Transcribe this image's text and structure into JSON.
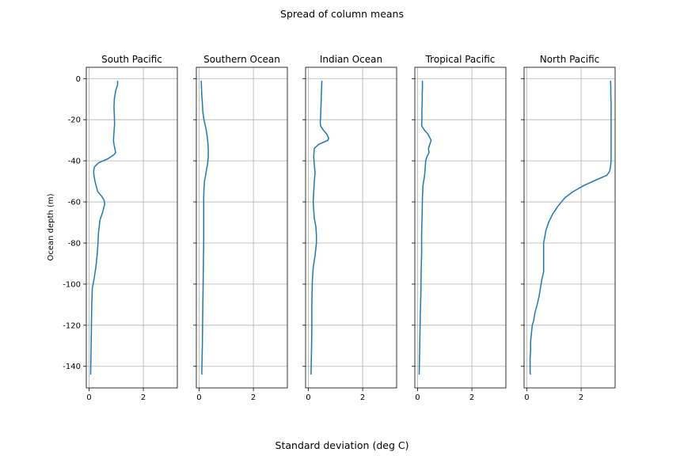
{
  "figure": {
    "suptitle": "Spread of column means",
    "supxlabel": "Standard deviation (deg C)"
  },
  "chart_data": {
    "type": "line",
    "title": "Spread of column means",
    "xlabel": "Standard deviation (deg C)",
    "ylabel": "Ocean depth (m)",
    "xlim": [
      -0.1,
      3.25
    ],
    "ylim": [
      -150.5,
      5.5
    ],
    "x_ticks": [
      0,
      2
    ],
    "y_ticks": [
      0,
      -20,
      -40,
      -60,
      -80,
      -100,
      -120,
      -140
    ],
    "grid": true,
    "sharey": true,
    "line_color": "#1f77b4",
    "panels": [
      {
        "title": "South Pacific",
        "x": [
          1.05,
          1.05,
          0.98,
          0.93,
          0.92,
          0.93,
          0.94,
          0.92,
          0.9,
          0.92,
          0.95,
          0.98,
          0.92,
          0.7,
          0.35,
          0.2,
          0.17,
          0.18,
          0.22,
          0.28,
          0.32,
          0.45,
          0.55,
          0.58,
          0.5,
          0.4,
          0.35,
          0.33,
          0.3,
          0.25,
          0.18,
          0.12,
          0.1,
          0.09,
          0.08,
          0.07,
          0.06
        ],
        "y": [
          -1,
          -3,
          -6,
          -10,
          -14,
          -18,
          -22,
          -26,
          -30,
          -32,
          -34,
          -36,
          -37,
          -39,
          -41,
          -43,
          -45,
          -47,
          -50,
          -53,
          -55,
          -57,
          -59,
          -61,
          -65,
          -69,
          -75,
          -80,
          -86,
          -92,
          -98,
          -102,
          -110,
          -120,
          -128,
          -136,
          -144
        ]
      },
      {
        "title": "Southern Ocean",
        "x": [
          0.08,
          0.09,
          0.1,
          0.12,
          0.14,
          0.18,
          0.25,
          0.3,
          0.33,
          0.34,
          0.34,
          0.32,
          0.28,
          0.24,
          0.2,
          0.18,
          0.17,
          0.17,
          0.17,
          0.17,
          0.16,
          0.15,
          0.14,
          0.13,
          0.12,
          0.11,
          0.1
        ],
        "y": [
          -1,
          -4,
          -8,
          -12,
          -16,
          -20,
          -24,
          -28,
          -32,
          -35,
          -38,
          -41,
          -44,
          -47,
          -50,
          -54,
          -58,
          -62,
          -70,
          -80,
          -90,
          -100,
          -110,
          -120,
          -130,
          -137,
          -144
        ]
      },
      {
        "title": "Indian Ocean",
        "x": [
          0.5,
          0.49,
          0.48,
          0.47,
          0.46,
          0.45,
          0.44,
          0.45,
          0.55,
          0.68,
          0.75,
          0.72,
          0.55,
          0.38,
          0.22,
          0.2,
          0.22,
          0.25,
          0.22,
          0.2,
          0.18,
          0.2,
          0.22,
          0.28,
          0.3,
          0.3,
          0.25,
          0.18,
          0.15,
          0.14,
          0.13,
          0.13,
          0.12,
          0.11,
          0.1
        ],
        "y": [
          -1,
          -4,
          -8,
          -12,
          -16,
          -19,
          -21,
          -23,
          -25,
          -27,
          -29,
          -30,
          -31,
          -32,
          -34,
          -38,
          -42,
          -46,
          -50,
          -55,
          -60,
          -64,
          -68,
          -72,
          -76,
          -80,
          -86,
          -92,
          -98,
          -104,
          -110,
          -120,
          -130,
          -138,
          -144
        ]
      },
      {
        "title": "Tropical Pacific",
        "x": [
          0.18,
          0.18,
          0.17,
          0.17,
          0.16,
          0.16,
          0.15,
          0.25,
          0.38,
          0.5,
          0.45,
          0.4,
          0.42,
          0.35,
          0.3,
          0.28,
          0.25,
          0.2,
          0.18,
          0.17,
          0.15,
          0.15,
          0.13,
          0.12,
          0.1,
          0.08,
          0.06
        ],
        "y": [
          -1,
          -4,
          -8,
          -12,
          -16,
          -20,
          -23,
          -25,
          -27,
          -30,
          -32,
          -34,
          -36,
          -38,
          -40,
          -44,
          -48,
          -52,
          -58,
          -65,
          -75,
          -85,
          -95,
          -105,
          -115,
          -130,
          -144
        ]
      },
      {
        "title": "North Pacific",
        "x": [
          3.08,
          3.09,
          3.09,
          3.1,
          3.1,
          3.1,
          3.1,
          3.1,
          3.1,
          3.1,
          3.1,
          3.08,
          3.05,
          2.95,
          2.6,
          2.1,
          1.7,
          1.4,
          1.15,
          0.95,
          0.8,
          0.7,
          0.65,
          0.62,
          0.62,
          0.62,
          0.62,
          0.62,
          0.55,
          0.5,
          0.45,
          0.38,
          0.3,
          0.25,
          0.2,
          0.17,
          0.14,
          0.14,
          0.12,
          0.12,
          0.12,
          0.14
        ],
        "y": [
          -1,
          -4,
          -8,
          -12,
          -16,
          -20,
          -24,
          -28,
          -32,
          -36,
          -40,
          -43,
          -45,
          -47,
          -49,
          -52,
          -55,
          -58,
          -62,
          -66,
          -70,
          -74,
          -78,
          -80,
          -84,
          -88,
          -92,
          -94,
          -98,
          -102,
          -106,
          -110,
          -114,
          -118,
          -120,
          -124,
          -128,
          -132,
          -136,
          -140,
          -143,
          -144
        ]
      }
    ]
  }
}
